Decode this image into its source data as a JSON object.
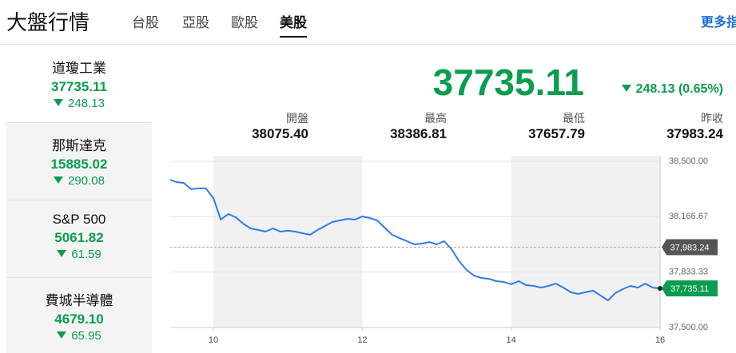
{
  "header": {
    "title": "大盤行情",
    "tabs": [
      "台股",
      "亞股",
      "歐股",
      "美股"
    ],
    "active_tab": 3,
    "more_link": "更多指數"
  },
  "sidebar": [
    {
      "name": "道瓊工業",
      "value": "37735.11",
      "change": "248.13"
    },
    {
      "name": "那斯達克",
      "value": "15885.02",
      "change": "290.08"
    },
    {
      "name": "S&P 500",
      "value": "5061.82",
      "change": "61.59"
    },
    {
      "name": "費城半導體",
      "value": "4679.10",
      "change": "65.95"
    }
  ],
  "quote": {
    "value": "37735.11",
    "change": "248.13 (0.65%)",
    "stats": [
      {
        "label": "開盤",
        "value": "38075.40"
      },
      {
        "label": "最高",
        "value": "38386.81"
      },
      {
        "label": "最低",
        "value": "37657.79"
      },
      {
        "label": "昨收",
        "value": "37983.24"
      }
    ]
  },
  "chart_data": {
    "type": "line",
    "color": "#2f7bf0",
    "x": [
      9.42,
      9.5,
      9.6,
      9.7,
      9.8,
      9.9,
      10.0,
      10.1,
      10.2,
      10.3,
      10.4,
      10.5,
      10.6,
      10.7,
      10.8,
      10.9,
      11.0,
      11.1,
      11.2,
      11.3,
      11.4,
      11.5,
      11.6,
      11.7,
      11.8,
      11.9,
      12.0,
      12.1,
      12.2,
      12.3,
      12.4,
      12.5,
      12.6,
      12.7,
      12.8,
      12.9,
      13.0,
      13.1,
      13.2,
      13.3,
      13.4,
      13.5,
      13.6,
      13.7,
      13.8,
      13.9,
      14.0,
      14.1,
      14.2,
      14.3,
      14.4,
      14.5,
      14.6,
      14.7,
      14.8,
      14.9,
      15.0,
      15.1,
      15.2,
      15.3,
      15.4,
      15.5,
      15.6,
      15.7,
      15.8,
      15.9,
      16.0
    ],
    "values": [
      38389,
      38375,
      38370,
      38332,
      38337,
      38337,
      38279,
      38149,
      38183,
      38163,
      38125,
      38096,
      38087,
      38077,
      38096,
      38077,
      38082,
      38077,
      38067,
      38058,
      38087,
      38111,
      38135,
      38144,
      38154,
      38149,
      38168,
      38159,
      38144,
      38101,
      38058,
      38038,
      38019,
      38000,
      38005,
      38014,
      38000,
      38019,
      37971,
      37899,
      37846,
      37812,
      37798,
      37793,
      37779,
      37774,
      37760,
      37779,
      37755,
      37750,
      37740,
      37750,
      37764,
      37740,
      37712,
      37702,
      37712,
      37721,
      37692,
      37663,
      37707,
      37731,
      37750,
      37740,
      37764,
      37740,
      37735.11
    ],
    "xlim": [
      9.42,
      16
    ],
    "xticks": [
      10,
      12,
      14,
      16
    ],
    "ylim": [
      37500,
      38500
    ],
    "yticks": [
      {
        "value": 38500,
        "label": "38,500.00"
      },
      {
        "value": 38166.67,
        "label": "38,166.67"
      },
      {
        "value": 37833.33,
        "label": "37,833.33"
      },
      {
        "value": 37500,
        "label": "37,500.00"
      }
    ],
    "grid": true,
    "reference_line": {
      "value": 37983.24,
      "label": "37,983.24"
    },
    "last_label": {
      "value": 37735.11,
      "label": "37,735.11"
    }
  }
}
